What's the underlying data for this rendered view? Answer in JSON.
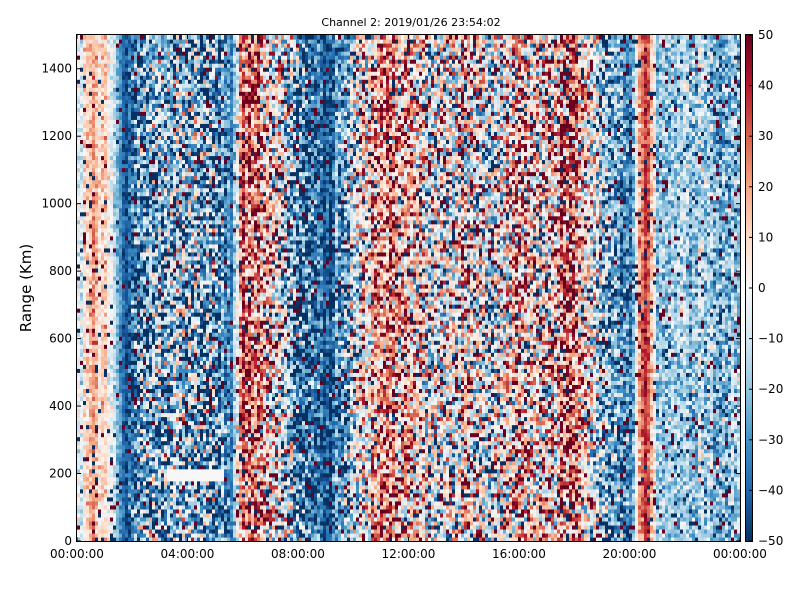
{
  "chart_data": {
    "type": "heatmap",
    "title": "Channel 2: 2019/01/26 23:54:02",
    "xlabel": "",
    "ylabel": "Range (Km)",
    "x_ticks": [
      "00:00:00",
      "04:00:00",
      "08:00:00",
      "12:00:00",
      "16:00:00",
      "20:00:00",
      "00:00:00"
    ],
    "x_range_hours": [
      0,
      24
    ],
    "y_ticks": [
      0,
      200,
      400,
      600,
      800,
      1000,
      1200,
      1400
    ],
    "ylim": [
      0,
      1500
    ],
    "colorbar": {
      "ticks": [
        -50,
        -40,
        -30,
        -20,
        -10,
        0,
        10,
        20,
        30,
        40,
        50
      ],
      "labels": [
        "−50",
        "−40",
        "−30",
        "−20",
        "−10",
        "0",
        "10",
        "20",
        "30",
        "40",
        "50"
      ],
      "range": [
        -50,
        50
      ],
      "colormap": "RdBu_r"
    },
    "grid": false,
    "column_profile": {
      "hour": [
        0.0,
        0.5,
        1.0,
        1.5,
        1.8,
        2.2,
        3.0,
        4.0,
        5.0,
        5.6,
        6.0,
        7.0,
        8.0,
        9.0,
        10.0,
        11.0,
        12.0,
        13.0,
        14.0,
        15.0,
        16.0,
        17.0,
        18.0,
        19.0,
        20.0,
        20.6,
        21.0,
        22.0,
        23.0,
        24.0
      ],
      "mean_value": [
        -12,
        18,
        12,
        -20,
        -45,
        -28,
        -22,
        -20,
        -25,
        -40,
        35,
        10,
        -30,
        -45,
        -10,
        25,
        15,
        -5,
        10,
        -10,
        15,
        5,
        30,
        -20,
        -35,
        42,
        -20,
        -15,
        -18,
        -22
      ],
      "noise": [
        15,
        12,
        14,
        10,
        8,
        40,
        42,
        45,
        45,
        10,
        30,
        45,
        40,
        15,
        40,
        35,
        40,
        45,
        45,
        45,
        45,
        45,
        40,
        40,
        20,
        10,
        18,
        20,
        22,
        20
      ]
    },
    "features": [
      {
        "label": "horizontal white band",
        "hour_start": 3.3,
        "hour_end": 5.3,
        "range_km": 195
      }
    ]
  }
}
